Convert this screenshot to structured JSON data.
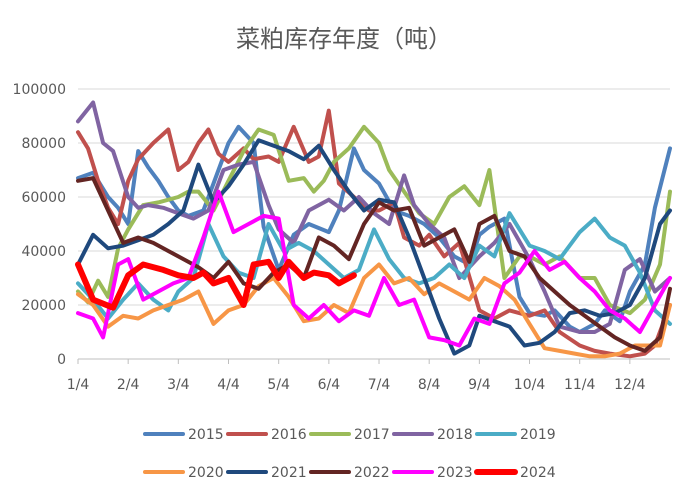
{
  "chart_data": {
    "type": "line",
    "title": "菜粕库存年度（吨）",
    "xlabel": "",
    "ylabel": "",
    "ylim": [
      0,
      100000
    ],
    "y_ticks": [
      "0",
      "20000",
      "40000",
      "60000",
      "80000",
      "100000"
    ],
    "x_ticks": [
      "1/4",
      "2/4",
      "3/4",
      "4/4",
      "5/4",
      "6/4",
      "7/4",
      "8/4",
      "9/4",
      "10/4",
      "11/4",
      "12/4"
    ],
    "x_range_months": [
      0,
      11.8
    ],
    "grid": "horizontal",
    "legend_position": "bottom",
    "series": [
      {
        "name": "2015",
        "color": "#4F81BD",
        "width": 4,
        "x": [
          0,
          0.3,
          0.6,
          0.8,
          1.0,
          1.2,
          1.4,
          1.6,
          1.8,
          2.0,
          2.2,
          2.5,
          2.7,
          3.0,
          3.2,
          3.5,
          3.7,
          4.0,
          4.3,
          4.6,
          5.0,
          5.2,
          5.5,
          5.7,
          6.0,
          6.3,
          6.6,
          6.9,
          7.2,
          7.5,
          7.8,
          8.0,
          8.2,
          8.5,
          8.8,
          9.0,
          9.3,
          9.5,
          9.8,
          10.0,
          10.3,
          10.5,
          10.8,
          11.0,
          11.3,
          11.5,
          11.8
        ],
        "y": [
          67000,
          69000,
          60000,
          56000,
          50000,
          77000,
          71000,
          66000,
          60000,
          55000,
          53000,
          55000,
          65000,
          80000,
          86000,
          80000,
          49000,
          33000,
          46000,
          50000,
          47000,
          55000,
          78000,
          70000,
          65000,
          55000,
          53000,
          50000,
          45000,
          38000,
          35000,
          46000,
          49000,
          52000,
          23000,
          17000,
          16000,
          18000,
          12000,
          10000,
          13000,
          18000,
          14000,
          25000,
          35000,
          56000,
          78000
        ]
      },
      {
        "name": "2016",
        "color": "#C0504D",
        "width": 4,
        "x": [
          0,
          0.2,
          0.4,
          0.6,
          0.8,
          1.0,
          1.2,
          1.5,
          1.8,
          2.0,
          2.2,
          2.4,
          2.6,
          2.8,
          3.0,
          3.3,
          3.5,
          3.8,
          4.0,
          4.3,
          4.6,
          4.8,
          5.0,
          5.2,
          5.5,
          5.8,
          6.0,
          6.3,
          6.5,
          6.8,
          7.0,
          7.3,
          7.6,
          8.0,
          8.3,
          8.6,
          9.0,
          9.3,
          9.6,
          10.0,
          10.3,
          10.6,
          11.0,
          11.3,
          11.5,
          11.8
        ],
        "y": [
          84000,
          78000,
          66000,
          56000,
          50000,
          66000,
          74000,
          80000,
          85000,
          70000,
          73000,
          80000,
          85000,
          76000,
          73000,
          78000,
          74000,
          75000,
          73000,
          86000,
          73000,
          75000,
          92000,
          65000,
          60000,
          55000,
          55000,
          58000,
          45000,
          42000,
          46000,
          38000,
          43000,
          18000,
          15000,
          18000,
          16000,
          18000,
          10000,
          5000,
          3000,
          2000,
          1000,
          2000,
          5000,
          20000
        ]
      },
      {
        "name": "2017",
        "color": "#9BBB59",
        "width": 4,
        "x": [
          0,
          0.2,
          0.4,
          0.6,
          0.8,
          1.0,
          1.3,
          1.6,
          2.0,
          2.2,
          2.4,
          2.7,
          3.0,
          3.3,
          3.6,
          3.9,
          4.2,
          4.5,
          4.7,
          4.9,
          5.1,
          5.4,
          5.7,
          6.0,
          6.2,
          6.5,
          6.8,
          7.1,
          7.4,
          7.7,
          8.0,
          8.2,
          8.5,
          8.8,
          9.0,
          9.3,
          9.6,
          10.0,
          10.3,
          10.6,
          11.0,
          11.3,
          11.6,
          11.8
        ],
        "y": [
          25000,
          21000,
          29000,
          23000,
          41000,
          48000,
          57000,
          58000,
          60000,
          62000,
          62000,
          55000,
          66000,
          77000,
          85000,
          83000,
          66000,
          67000,
          62000,
          66000,
          73000,
          78000,
          86000,
          80000,
          70000,
          62000,
          54000,
          50000,
          60000,
          64000,
          57000,
          70000,
          30000,
          38000,
          38000,
          35000,
          38000,
          30000,
          30000,
          20000,
          17000,
          22000,
          35000,
          62000
        ]
      },
      {
        "name": "2018",
        "color": "#8064A2",
        "width": 4,
        "x": [
          0,
          0.3,
          0.5,
          0.7,
          1.0,
          1.2,
          1.4,
          1.7,
          2.0,
          2.3,
          2.6,
          2.9,
          3.2,
          3.5,
          3.8,
          4.0,
          4.3,
          4.6,
          5.0,
          5.3,
          5.6,
          5.9,
          6.2,
          6.5,
          6.7,
          7.0,
          7.3,
          7.6,
          8.0,
          8.3,
          8.6,
          9.0,
          9.3,
          9.6,
          10.0,
          10.3,
          10.6,
          10.9,
          11.2,
          11.5,
          11.8
        ],
        "y": [
          88000,
          95000,
          80000,
          77000,
          60000,
          56000,
          57000,
          56000,
          54000,
          52000,
          55000,
          70000,
          72000,
          73000,
          57000,
          48000,
          43000,
          55000,
          59000,
          55000,
          60000,
          54000,
          50000,
          68000,
          57000,
          50000,
          45000,
          30000,
          38000,
          43000,
          50000,
          37000,
          25000,
          12000,
          10000,
          10000,
          13000,
          33000,
          37000,
          25000,
          30000
        ]
      },
      {
        "name": "2019",
        "color": "#4BACC6",
        "width": 4,
        "x": [
          0,
          0.3,
          0.6,
          0.9,
          1.2,
          1.5,
          1.8,
          2.0,
          2.3,
          2.6,
          2.9,
          3.2,
          3.5,
          3.8,
          4.1,
          4.4,
          4.7,
          5.0,
          5.3,
          5.6,
          5.9,
          6.2,
          6.5,
          6.8,
          7.1,
          7.4,
          7.7,
          8.0,
          8.3,
          8.6,
          9.0,
          9.3,
          9.6,
          10.0,
          10.3,
          10.6,
          10.9,
          11.2,
          11.5,
          11.8
        ],
        "y": [
          28000,
          22000,
          15000,
          22000,
          28000,
          22000,
          18000,
          25000,
          30000,
          50000,
          38000,
          32000,
          30000,
          50000,
          40000,
          43000,
          40000,
          35000,
          30000,
          33000,
          48000,
          37000,
          30000,
          28000,
          30000,
          35000,
          30000,
          42000,
          38000,
          54000,
          42000,
          40000,
          37000,
          47000,
          52000,
          45000,
          42000,
          32000,
          18000,
          13000
        ]
      },
      {
        "name": "2020",
        "color": "#F79646",
        "width": 4,
        "x": [
          0,
          0.3,
          0.6,
          0.9,
          1.2,
          1.5,
          1.8,
          2.1,
          2.4,
          2.7,
          3.0,
          3.3,
          3.6,
          3.9,
          4.2,
          4.5,
          4.8,
          5.1,
          5.4,
          5.7,
          6.0,
          6.3,
          6.6,
          6.9,
          7.2,
          7.5,
          7.8,
          8.1,
          8.4,
          8.7,
          9.0,
          9.3,
          9.6,
          9.9,
          10.2,
          10.5,
          10.8,
          11.1,
          11.4,
          11.6,
          11.8
        ],
        "y": [
          24000,
          20000,
          12000,
          16000,
          15000,
          18000,
          20000,
          22000,
          25000,
          13000,
          18000,
          20000,
          27000,
          30000,
          23000,
          14000,
          15000,
          20000,
          17000,
          30000,
          35000,
          28000,
          30000,
          24000,
          28000,
          25000,
          22000,
          30000,
          27000,
          22000,
          13000,
          4000,
          3000,
          2000,
          1000,
          1000,
          2000,
          5000,
          5000,
          5000,
          20000
        ]
      },
      {
        "name": "2021",
        "color": "#1F497D",
        "width": 4,
        "x": [
          0,
          0.3,
          0.6,
          0.9,
          1.2,
          1.5,
          1.8,
          2.1,
          2.4,
          2.7,
          3.0,
          3.3,
          3.6,
          3.9,
          4.2,
          4.5,
          4.8,
          5.1,
          5.4,
          5.7,
          6.0,
          6.3,
          6.6,
          6.9,
          7.2,
          7.5,
          7.8,
          8.0,
          8.3,
          8.6,
          8.9,
          9.2,
          9.5,
          9.8,
          10.1,
          10.4,
          10.7,
          11.0,
          11.3,
          11.6,
          11.8
        ],
        "y": [
          35000,
          46000,
          41000,
          42000,
          44000,
          46000,
          50000,
          55000,
          72000,
          58000,
          64000,
          72000,
          81000,
          79000,
          77000,
          74000,
          79000,
          70000,
          62000,
          55000,
          59000,
          58000,
          45000,
          30000,
          15000,
          2000,
          5000,
          16000,
          14000,
          12000,
          5000,
          6000,
          10000,
          17000,
          18000,
          16000,
          17000,
          20000,
          30000,
          50000,
          55000
        ]
      },
      {
        "name": "2022",
        "color": "#632523",
        "width": 4,
        "x": [
          0,
          0.3,
          0.6,
          0.9,
          1.2,
          1.5,
          1.8,
          2.1,
          2.4,
          2.7,
          3.0,
          3.3,
          3.6,
          3.9,
          4.2,
          4.5,
          4.8,
          5.1,
          5.4,
          5.7,
          6.0,
          6.3,
          6.6,
          6.9,
          7.2,
          7.5,
          7.8,
          8.0,
          8.3,
          8.6,
          8.9,
          9.2,
          9.5,
          9.8,
          10.1,
          10.4,
          10.7,
          11.0,
          11.3,
          11.6,
          11.8
        ],
        "y": [
          66000,
          67000,
          55000,
          43000,
          45000,
          43000,
          40000,
          37000,
          34000,
          30000,
          36000,
          28000,
          26000,
          32000,
          35000,
          30000,
          45000,
          42000,
          37000,
          50000,
          58000,
          55000,
          56000,
          42000,
          45000,
          48000,
          36000,
          50000,
          53000,
          40000,
          38000,
          30000,
          25000,
          20000,
          16000,
          12000,
          8000,
          5000,
          3000,
          8000,
          26000
        ]
      },
      {
        "name": "2023",
        "color": "#FF00FF",
        "width": 4,
        "x": [
          0,
          0.3,
          0.5,
          0.8,
          1.0,
          1.3,
          1.6,
          1.9,
          2.2,
          2.5,
          2.8,
          3.1,
          3.4,
          3.7,
          4.0,
          4.3,
          4.6,
          4.9,
          5.2,
          5.5,
          5.8,
          6.1,
          6.4,
          6.7,
          7.0,
          7.3,
          7.6,
          7.9,
          8.2,
          8.5,
          8.8,
          9.1,
          9.4,
          9.7,
          10.0,
          10.3,
          10.6,
          10.9,
          11.2,
          11.5,
          11.8
        ],
        "y": [
          17000,
          15000,
          8000,
          35000,
          37000,
          22000,
          25000,
          28000,
          30000,
          45000,
          62000,
          47000,
          50000,
          53000,
          52000,
          20000,
          15000,
          20000,
          14000,
          18000,
          16000,
          30000,
          20000,
          22000,
          8000,
          7000,
          5000,
          15000,
          13000,
          28000,
          32000,
          40000,
          33000,
          36000,
          30000,
          25000,
          18000,
          15000,
          10000,
          20000,
          30000
        ]
      },
      {
        "name": "2024",
        "color": "#FF0000",
        "width": 6,
        "x": [
          0,
          0.3,
          0.7,
          1.0,
          1.3,
          1.7,
          2.0,
          2.3,
          2.5,
          2.7,
          3.0,
          3.3,
          3.5,
          3.8,
          4.0,
          4.2,
          4.5,
          4.7,
          5.0,
          5.2,
          5.5
        ],
        "y": [
          35000,
          22000,
          19000,
          31000,
          35000,
          33000,
          31000,
          30000,
          32000,
          28000,
          30000,
          20000,
          35000,
          36000,
          30000,
          36000,
          30000,
          32000,
          31000,
          28000,
          31000
        ]
      }
    ]
  }
}
